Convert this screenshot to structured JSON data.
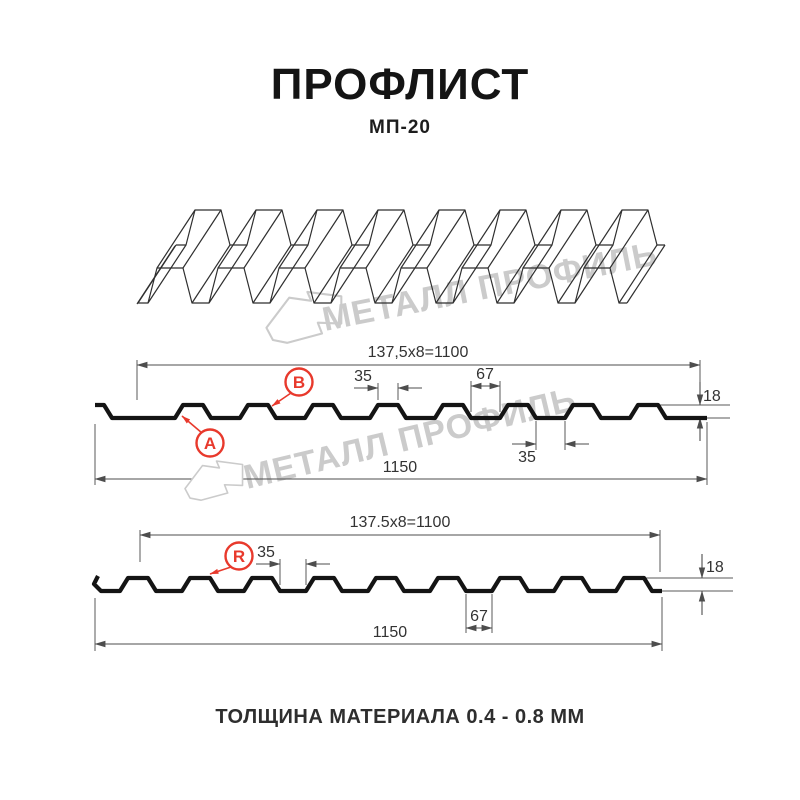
{
  "title": "ПРОФЛИСТ",
  "subtitle": "МП-20",
  "footer": "ТОЛЩИНА МАТЕРИАЛА 0.4 - 0.8 ММ",
  "watermark": {
    "text": "МЕТАЛЛ ПРОФИЛЬ",
    "logo": "metal-profil-logo"
  },
  "colors": {
    "red": "#e8392c",
    "ink": "#141414",
    "line": "#4d4d4d",
    "watermark": "#cbcbcb"
  },
  "views": {
    "front": {
      "coverage_width": "137,5x8=1100",
      "overall_width": "1150",
      "rib_top": "35",
      "valley": "67",
      "height": "18",
      "bottom_flat": "35",
      "labels": {
        "a": "A",
        "b": "B"
      }
    },
    "back": {
      "coverage_width": "137.5x8=1100",
      "overall_width": "1150",
      "rib_top": "35",
      "valley": "67",
      "height": "18",
      "labels": {
        "r": "R"
      }
    }
  },
  "profile_spec": {
    "name": "МП-20",
    "pitch_mm": 137.5,
    "modules": 8,
    "coverage_width_mm": 1100,
    "overall_width_mm": 1150,
    "rib_top_mm": 35,
    "valley_mm": 67,
    "profile_height_mm": 18,
    "thickness_range_mm": "0.4 - 0.8"
  }
}
